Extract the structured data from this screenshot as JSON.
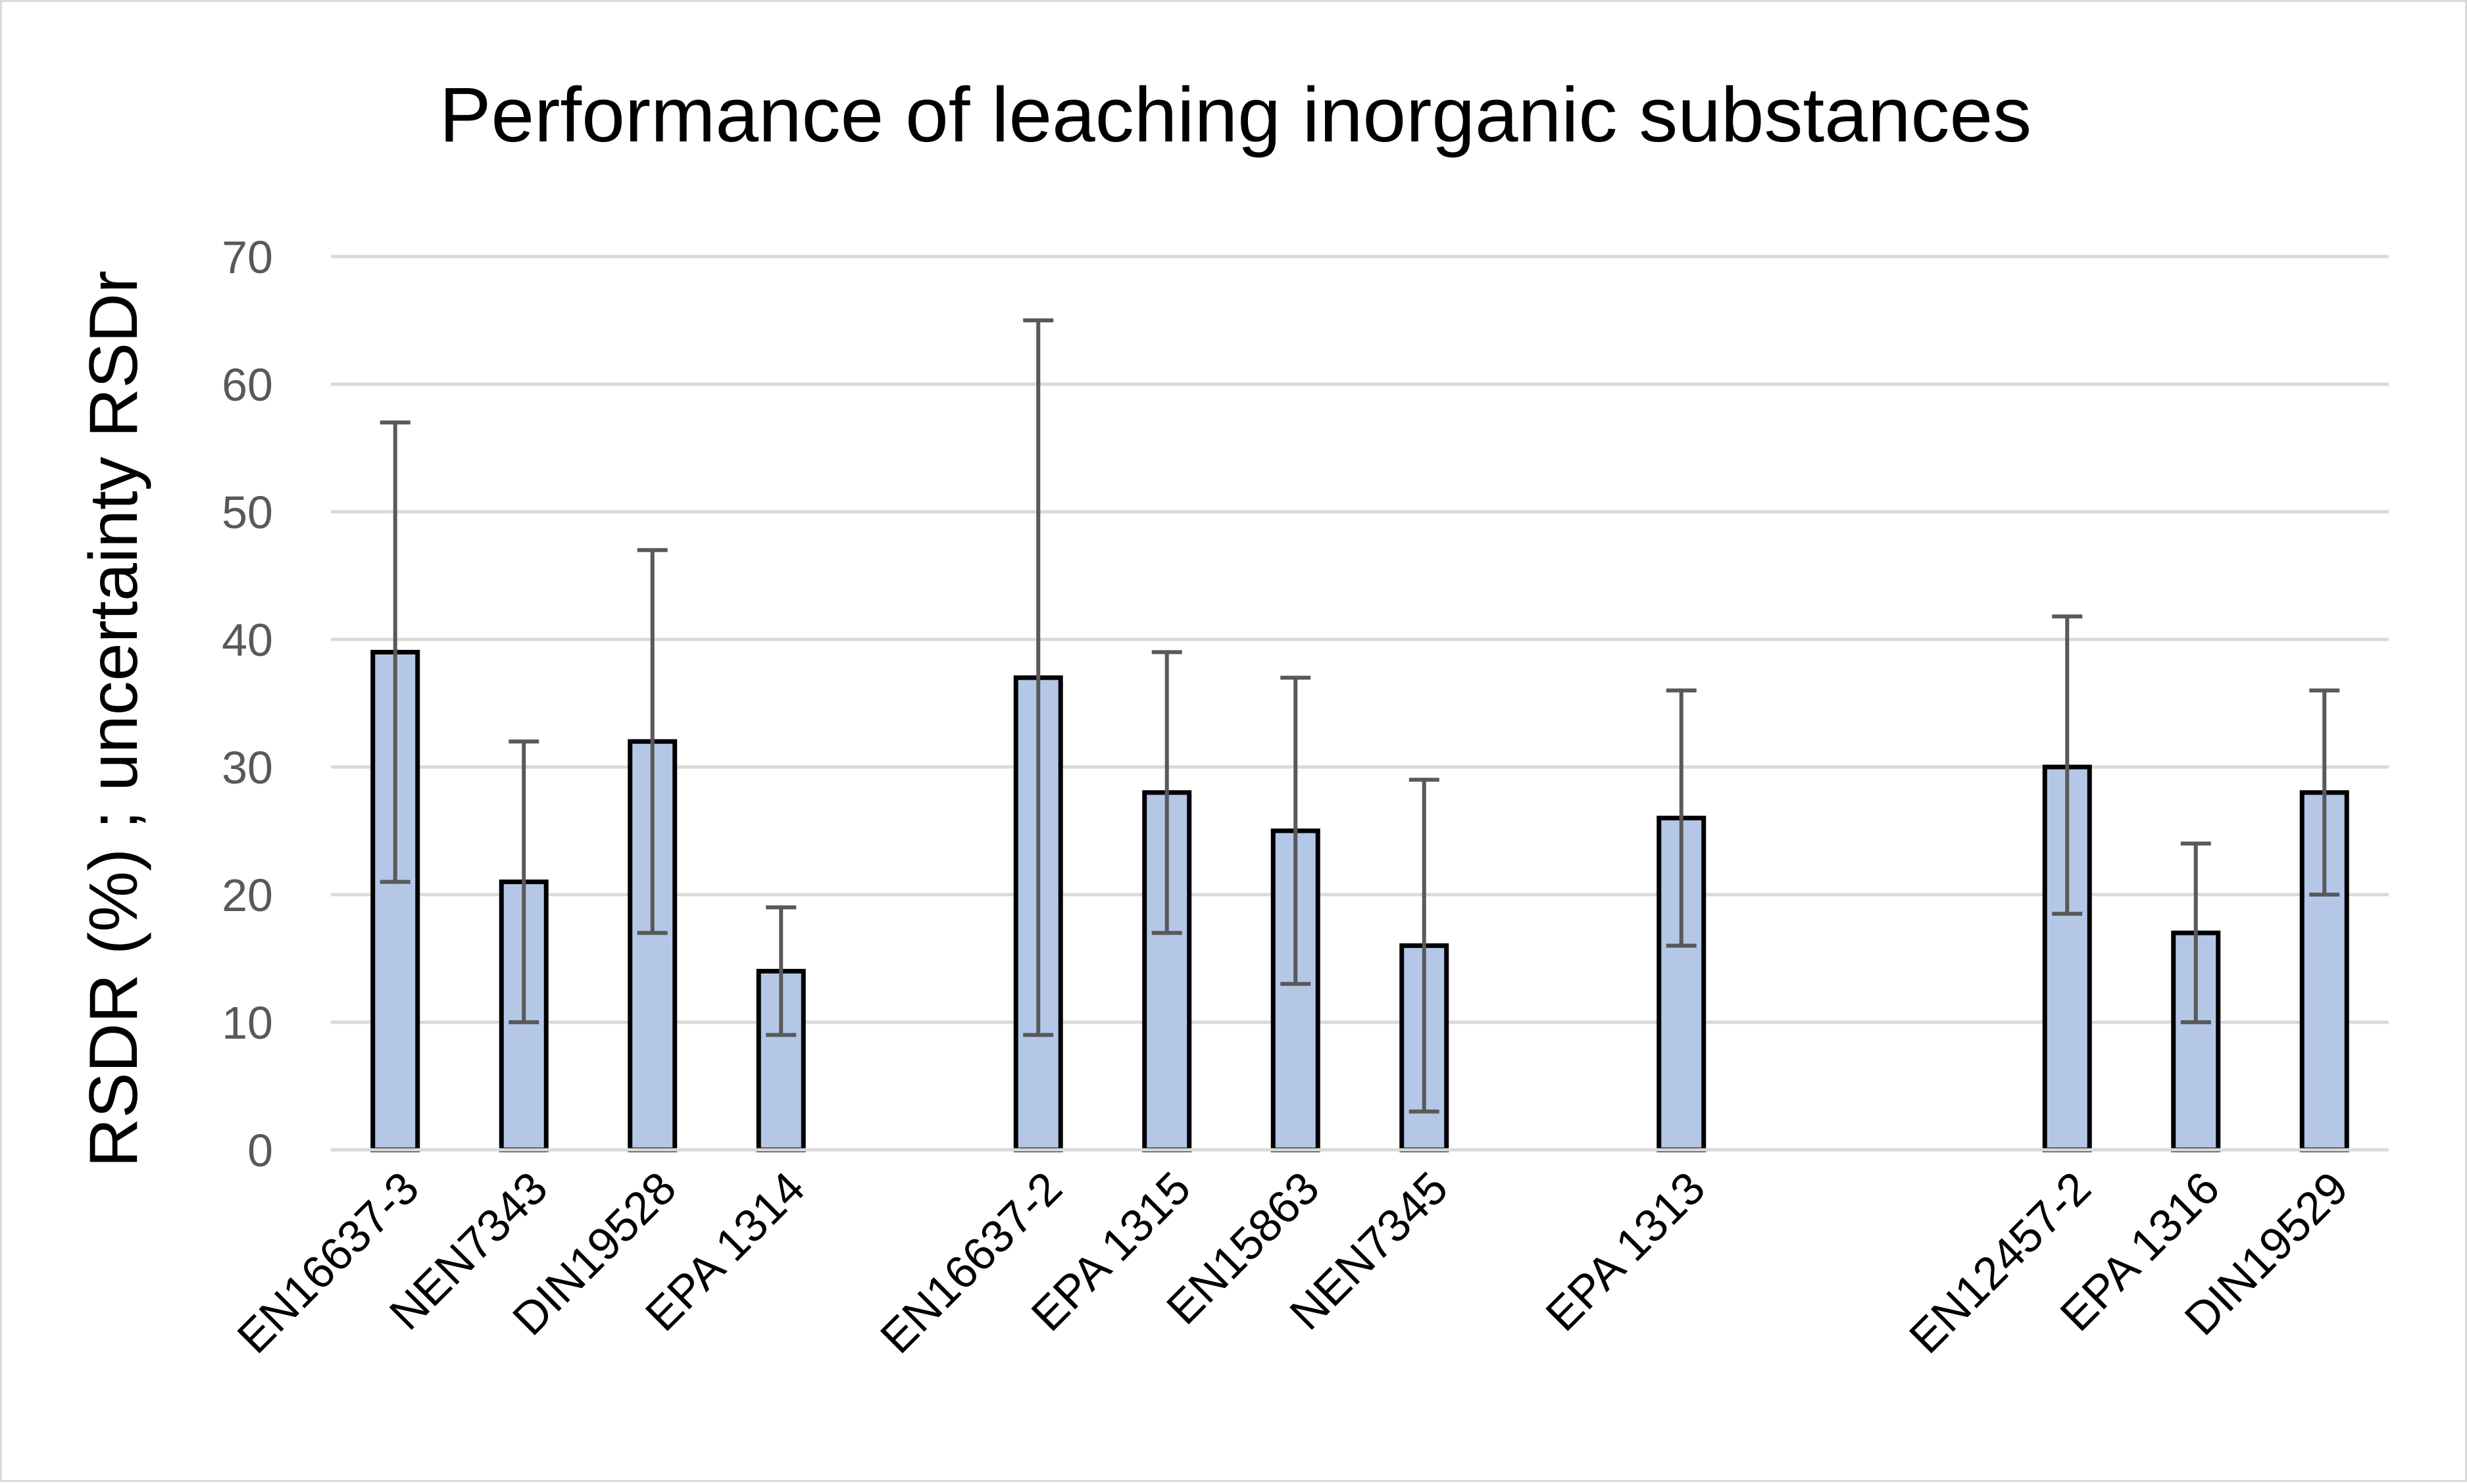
{
  "chart_data": {
    "type": "bar",
    "title": "Performance of leaching inorganic substances",
    "xlabel": "",
    "ylabel": "RSDR (%) ; uncertainty RSDr",
    "ylim": [
      0,
      70
    ],
    "yticks": [
      0,
      10,
      20,
      30,
      40,
      50,
      60,
      70
    ],
    "grid": true,
    "legend": "none",
    "bar_color": "#b4c7e7",
    "bar_edge_color": "#000000",
    "error_bar_color": "#595959",
    "grid_color": "#d9d9d9",
    "categories": [
      "EN16637-3",
      "NEN7343",
      "DIN19528",
      "EPA 1314",
      "",
      "EN16637-2",
      "EPA 1315",
      "EN15863",
      "NEN7345",
      "",
      "EPA 1313",
      "",
      "",
      "EN12457-2",
      "EPA 1316",
      "DIN19529"
    ],
    "values": [
      39,
      21,
      32,
      14,
      null,
      37,
      28,
      25,
      16,
      null,
      26,
      null,
      null,
      30,
      17,
      28
    ],
    "error_low": [
      21,
      10,
      17,
      9,
      null,
      9,
      17,
      13,
      3,
      null,
      16,
      null,
      null,
      18.5,
      10,
      20
    ],
    "error_high": [
      57,
      32,
      47,
      19,
      null,
      65,
      39,
      37,
      29,
      null,
      36,
      null,
      null,
      41.8,
      24,
      36
    ]
  }
}
